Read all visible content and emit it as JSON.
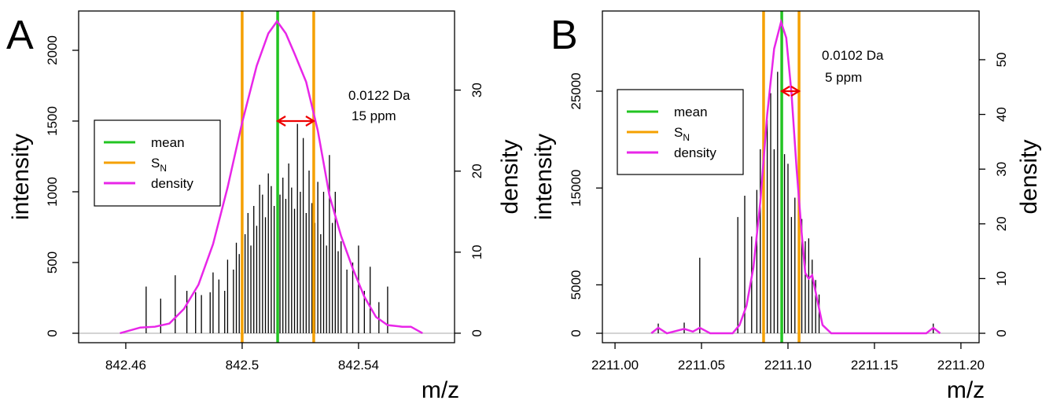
{
  "chart_data": [
    {
      "type": "spectrum",
      "label": "A",
      "xlabel": "m/z",
      "ylabel": "intensity",
      "y2label": "density",
      "xlim": [
        842.4438,
        842.573
      ],
      "ylim": [
        -66.7,
        2277.8
      ],
      "y2lim": [
        -1.17,
        39.76
      ],
      "xticks": [
        842.46,
        842.5,
        842.54
      ],
      "yticks": [
        0,
        500,
        1000,
        1500,
        2000
      ],
      "y2ticks": [
        0,
        10,
        20,
        30
      ],
      "color": "#000000",
      "x": [
        842.467,
        842.472,
        842.477,
        842.481,
        842.484,
        842.486,
        842.489,
        842.49,
        842.492,
        842.494,
        842.495,
        842.497,
        842.498,
        842.499,
        842.501,
        842.502,
        842.503,
        842.504,
        842.505,
        842.506,
        842.507,
        842.508,
        842.509,
        842.51,
        842.511,
        842.512,
        842.513,
        842.514,
        842.515,
        842.516,
        842.517,
        842.518,
        842.519,
        842.52,
        842.521,
        842.522,
        842.523,
        842.524,
        842.525,
        842.526,
        842.527,
        842.528,
        842.529,
        842.53,
        842.531,
        842.532,
        842.533,
        842.534,
        842.536,
        842.538,
        842.54,
        842.542,
        842.544,
        842.547,
        842.55
      ],
      "values": [
        330,
        245,
        410,
        300,
        290,
        270,
        290,
        430,
        380,
        300,
        520,
        450,
        640,
        560,
        700,
        850,
        620,
        900,
        760,
        1050,
        980,
        820,
        1130,
        1040,
        900,
        1170,
        980,
        1100,
        950,
        1200,
        1030,
        880,
        1480,
        1000,
        1380,
        850,
        1150,
        920,
        780,
        1070,
        700,
        1000,
        620,
        1260,
        780,
        1000,
        580,
        650,
        450,
        500,
        620,
        300,
        470,
        220,
        330
      ],
      "vlines": [
        {
          "name": "mean",
          "color": "#22c422",
          "values": [
            842.5122
          ]
        },
        {
          "name": "S",
          "name_sub": "N",
          "color": "#f5a000",
          "values": [
            842.5,
            842.5246
          ]
        }
      ],
      "series": [
        {
          "name": "density",
          "color": "#e826e8",
          "axis": "y2",
          "x": [
            842.458,
            842.465,
            842.47,
            842.475,
            842.48,
            842.485,
            842.49,
            842.495,
            842.5,
            842.505,
            842.509,
            842.512,
            842.515,
            842.518,
            842.522,
            842.526,
            842.53,
            842.534,
            842.538,
            842.542,
            842.546,
            842.55,
            842.555,
            842.558,
            842.562
          ],
          "values": [
            0,
            0.7,
            0.8,
            1.2,
            3,
            6,
            11,
            18,
            26,
            33,
            37,
            38.5,
            37,
            34.5,
            31,
            25,
            17,
            12,
            8,
            4.5,
            2,
            1,
            0.8,
            0.8,
            0
          ]
        }
      ],
      "annotations": [
        "0.0122 Da",
        "15  ppm"
      ]
    },
    {
      "type": "spectrum",
      "label": "B",
      "xlabel": "m/z",
      "ylabel": "intensity",
      "y2label": "density",
      "xlim": [
        2210.9927,
        2211.2105
      ],
      "ylim": [
        -974,
        33279
      ],
      "y2lim": [
        -1.72,
        58.9
      ],
      "xticks": [
        {
          "value": 2211,
          "label": "2211.00"
        },
        {
          "value": 2211.05,
          "label": "2211.05"
        },
        {
          "value": 2211.1,
          "label": "2211.10"
        },
        {
          "value": 2211.15,
          "label": "2211.15"
        },
        {
          "value": 2211.2,
          "label": "2211.20"
        }
      ],
      "yticks": [
        0,
        5000,
        15000,
        25000
      ],
      "y2ticks": [
        0,
        10,
        20,
        30,
        40,
        50
      ],
      "color": "#000000",
      "x": [
        2211.025,
        2211.04,
        2211.049,
        2211.071,
        2211.075,
        2211.079,
        2211.082,
        2211.084,
        2211.086,
        2211.088,
        2211.09,
        2211.092,
        2211.094,
        2211.096,
        2211.098,
        2211.1,
        2211.102,
        2211.104,
        2211.106,
        2211.108,
        2211.11,
        2211.112,
        2211.114,
        2211.116,
        2211.118,
        2211.184
      ],
      "values": [
        1000,
        1100,
        7800,
        12000,
        14200,
        10000,
        14800,
        19000,
        20500,
        22000,
        24800,
        19000,
        27000,
        22000,
        18500,
        17500,
        12000,
        14000,
        10000,
        11800,
        9500,
        9800,
        7600,
        5500,
        4000,
        1000
      ],
      "vlines": [
        {
          "name": "mean",
          "color": "#22c422",
          "values": [
            2211.0964
          ]
        },
        {
          "name": "S",
          "name_sub": "N",
          "color": "#f5a000",
          "values": [
            2211.0859,
            2211.1064
          ]
        }
      ],
      "series": [
        {
          "name": "density",
          "color": "#e826e8",
          "axis": "y2",
          "x": [
            2211.021,
            2211.025,
            2211.03,
            2211.04,
            2211.045,
            2211.049,
            2211.055,
            2211.068,
            2211.072,
            2211.076,
            2211.08,
            2211.084,
            2211.088,
            2211.092,
            2211.096,
            2211.099,
            2211.102,
            2211.105,
            2211.108,
            2211.11,
            2211.112,
            2211.114,
            2211.117,
            2211.12,
            2211.125,
            2211.18,
            2211.184,
            2211.188
          ],
          "values": [
            0,
            1,
            0,
            0.8,
            0.3,
            1,
            0,
            0,
            1.5,
            5,
            12,
            24,
            40,
            52,
            56.9,
            54,
            44,
            30,
            18,
            11,
            10,
            10.6,
            6,
            1.5,
            0,
            0,
            1,
            0
          ]
        }
      ],
      "annotations": [
        "0.0102 Da",
        "5  ppm"
      ]
    }
  ]
}
